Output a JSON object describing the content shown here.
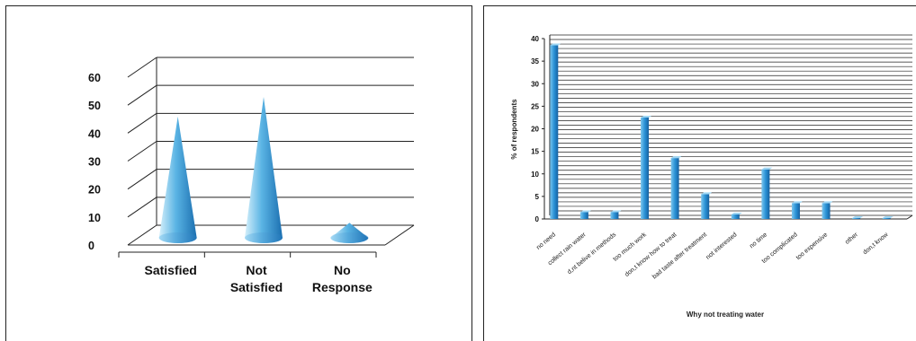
{
  "chart_data": [
    {
      "type": "cone",
      "categories": [
        "Satisfied",
        "Not Satisfied",
        "No Response"
      ],
      "category_lines": [
        [
          "Satisfied"
        ],
        [
          "Not",
          "Satisfied"
        ],
        [
          "No",
          "Response"
        ]
      ],
      "values": [
        44,
        51,
        6
      ],
      "ylim": [
        0,
        60
      ],
      "yticks": [
        "0",
        "10",
        "20",
        "30",
        "40",
        "50",
        "60"
      ],
      "title": "",
      "xlabel": "",
      "ylabel": "",
      "grid": true,
      "colors": {
        "fill_light": "#d6f0fb",
        "fill_mid": "#5ab4e4",
        "fill_dark": "#1b6fb0"
      }
    },
    {
      "type": "bar",
      "categories": [
        "no need",
        "collect rain water",
        "d,nt belive in methods",
        "too much work",
        "don,t know how to treat",
        "bad taste after treatment",
        "not interested",
        "no time",
        "too complicated",
        "too expensive",
        "other",
        "don,t know"
      ],
      "values": [
        38.5,
        1.5,
        1.5,
        22.5,
        13.5,
        5.5,
        1,
        11,
        3.5,
        3.5,
        0.2,
        0.2
      ],
      "ylim": [
        0,
        40
      ],
      "yticks": [
        "0",
        "5",
        "10",
        "15",
        "20",
        "25",
        "30",
        "35",
        "40"
      ],
      "title": "",
      "xlabel": "Why not treating water",
      "ylabel": "% of respondents",
      "grid": true,
      "colors": {
        "bar": "#2a92d6",
        "bar_dark": "#1560a0"
      }
    }
  ]
}
